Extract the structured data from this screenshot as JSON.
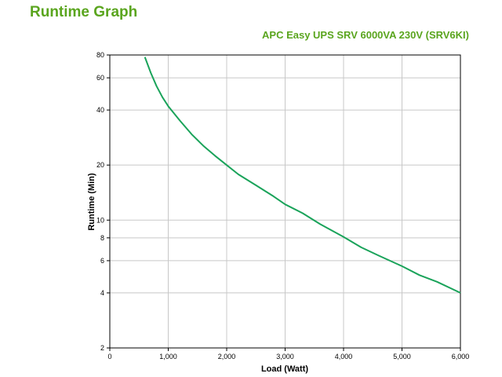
{
  "page": {
    "title": "Runtime Graph"
  },
  "chart_data": {
    "type": "line",
    "title": "APC Easy UPS SRV 6000VA 230V (SRV6KI)",
    "xlabel": "Load (Watt)",
    "ylabel": "Runtime (Min)",
    "xlim": [
      0,
      6000
    ],
    "ylim": [
      2,
      80
    ],
    "yscale": "log",
    "grid": true,
    "x_ticks": [
      0,
      1000,
      2000,
      3000,
      4000,
      5000,
      6000
    ],
    "x_tick_labels": [
      "0",
      "1,000",
      "2,000",
      "3,000",
      "4,000",
      "5,000",
      "6,000"
    ],
    "y_ticks": [
      2,
      4,
      6,
      8,
      10,
      20,
      40,
      60,
      80
    ],
    "y_tick_labels": [
      "2",
      "4",
      "6",
      "8",
      "10",
      "20",
      "40",
      "60",
      "80"
    ],
    "line_color": "#1aa35a",
    "series": [
      {
        "x": [
          600,
          700,
          800,
          900,
          1000,
          1200,
          1400,
          1600,
          1800,
          2000,
          2200,
          2500,
          2800,
          3000,
          3300,
          3600,
          4000,
          4300,
          4600,
          5000,
          5300,
          5600,
          6000
        ],
        "values": [
          78,
          64,
          54,
          47,
          42,
          35,
          29.5,
          25.5,
          22.5,
          20,
          17.8,
          15.5,
          13.5,
          12.2,
          10.9,
          9.5,
          8.1,
          7.1,
          6.4,
          5.6,
          5.0,
          4.6,
          4.0
        ]
      }
    ]
  }
}
